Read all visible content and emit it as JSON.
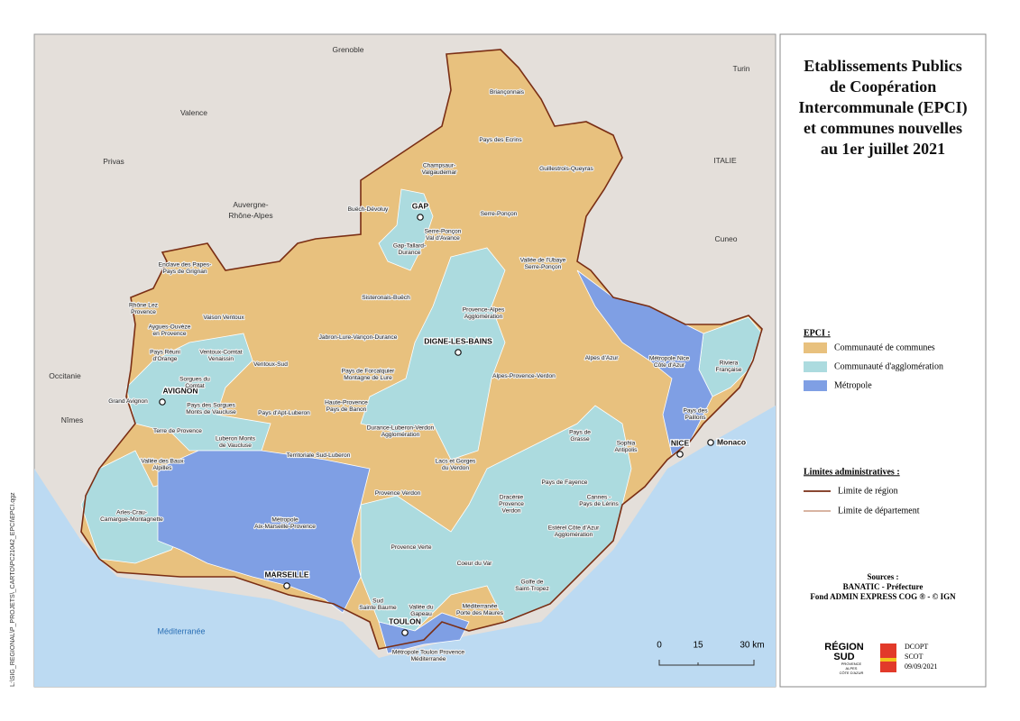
{
  "map": {
    "places": [
      {
        "label": [
          "Grenoble"
        ]
      },
      {
        "label": [
          "Turin"
        ]
      },
      {
        "label": [
          "Valence"
        ]
      },
      {
        "label": [
          "Privas"
        ]
      },
      {
        "label": [
          "ITALIE"
        ]
      },
      {
        "label": [
          "Auvergne-",
          "Rhône-Alpes"
        ]
      },
      {
        "label": [
          "Cuneo"
        ]
      },
      {
        "label": [
          "Occitanie"
        ]
      },
      {
        "label": [
          "Nîmes"
        ]
      }
    ],
    "sea": "Méditerranée",
    "cities": [
      "GAP",
      "DIGNE-LES-BAINS",
      "AVIGNON",
      "NICE",
      "Monaco",
      "MARSEILLE",
      "TOULON"
    ],
    "epci": [
      [
        "Briançonnais"
      ],
      [
        "Pays des Ecrins"
      ],
      [
        "Champsaur-",
        "Valgaudemar"
      ],
      [
        "Guillestrois-Queyras"
      ],
      [
        "Buëch-Dévoluy"
      ],
      [
        "Serre-Ponçon"
      ],
      [
        "Serre-Ponçon",
        "Val d'Avance"
      ],
      [
        "Gap-Tallard-",
        "Durance"
      ],
      [
        "Vallée de l'Ubaye",
        "Serre-Ponçon"
      ],
      [
        "Enclave des Papes-",
        "Pays de Grignan"
      ],
      [
        "Sisteronais-Buëch"
      ],
      [
        "Provence-Alpes",
        "Agglomération"
      ],
      [
        "Rhône Lez",
        "Provence"
      ],
      [
        "Vaison Ventoux"
      ],
      [
        "Aygues-Ouvèze",
        "en Provence"
      ],
      [
        "Jabron-Lure-Vançon-Durance"
      ],
      [
        "Pays Réuni",
        "d'Orange"
      ],
      [
        "Ventoux-Comtat",
        "Venaissin"
      ],
      [
        "Alpes d'Azur"
      ],
      [
        "Métropole Nice",
        "Côte d'Azur"
      ],
      [
        "Riviera",
        "Française"
      ],
      [
        "Ventoux-Sud"
      ],
      [
        "Pays de Forcalquier",
        "Montagne de Lure"
      ],
      [
        "Alpes-Provence-Verdon"
      ],
      [
        "Sorgues du",
        "Comtat"
      ],
      [
        "Grand Avignon"
      ],
      [
        "Haute-Provence",
        "Pays de Banon"
      ],
      [
        "Pays des Sorgues",
        "Monts de Vaucluse"
      ],
      [
        "Pays d'Apt-Luberon"
      ],
      [
        "Pays des",
        "Paillons"
      ],
      [
        "Durance-Luberon-Verdon",
        "Agglomération"
      ],
      [
        "Terre de Provence"
      ],
      [
        "Pays de",
        "Grasse"
      ],
      [
        "Luberon Monts",
        "de Vaucluse"
      ],
      [
        "Sophia",
        "Antipolis"
      ],
      [
        "Territoriale Sud-Luberon"
      ],
      [
        "Lacs et Gorges",
        "du Verdon"
      ],
      [
        "Vallée des Baux",
        "Alpilles"
      ],
      [
        "Pays de Fayence"
      ],
      [
        "Provence Verdon"
      ],
      [
        "Cannes -",
        "Pays de Lérins"
      ],
      [
        "Dracénie",
        "Provence",
        "Verdon"
      ],
      [
        "Arles-Crau-",
        "Camargue-Montagnette"
      ],
      [
        "Métropole",
        "Aix-Marseille-Provence"
      ],
      [
        "Estérel Côte d'Azur",
        "Agglomération"
      ],
      [
        "Provence Verte"
      ],
      [
        "Coeur du Var"
      ],
      [
        "Golfe de",
        "Saint-Tropez"
      ],
      [
        "Sud",
        "Sainte Baume"
      ],
      [
        "Vallée du",
        "Gapeau"
      ],
      [
        "Méditerranée",
        "Porte des Maures"
      ],
      [
        "Métropole Toulon Provence",
        "Méditerranée"
      ]
    ],
    "scale": [
      "0",
      "15",
      "30 km"
    ],
    "file_path": "L:\\SIG_REGIONAL\\P_PROJETS\\_CARTO\\PC21042_EPCI\\EPCI.qgz"
  },
  "legend": {
    "title": [
      "Etablissements Publics",
      "de Coopération",
      "Intercommunale (EPCI)",
      "et communes nouvelles",
      "au 1er juillet 2021"
    ],
    "epci_heading": "EPCI :",
    "items": [
      {
        "label": "Communauté de communes",
        "color": "#e8c17e"
      },
      {
        "label": "Communauté d'agglomération",
        "color": "#acdbdf"
      },
      {
        "label": "Métropole",
        "color": "#7f9fe4"
      }
    ],
    "limits_heading": "Limites administratives :",
    "limits": [
      {
        "label": "Limite de région",
        "color": "#7a2e14"
      },
      {
        "label": "Limite de département",
        "color": "#b06a45"
      }
    ],
    "sources": {
      "heading": "Sources :",
      "lines": [
        "BANATIC - Préfecture",
        "Fond ADMIN EXPRESS COG ® - © IGN"
      ]
    },
    "logo": {
      "name": [
        "RÉGION",
        "SUD"
      ],
      "sub": [
        "PROVENCE",
        "ALPES",
        "CÔTE D'AZUR"
      ],
      "service": [
        "DCOPT",
        "SCOT",
        "09/09/2021"
      ]
    }
  }
}
